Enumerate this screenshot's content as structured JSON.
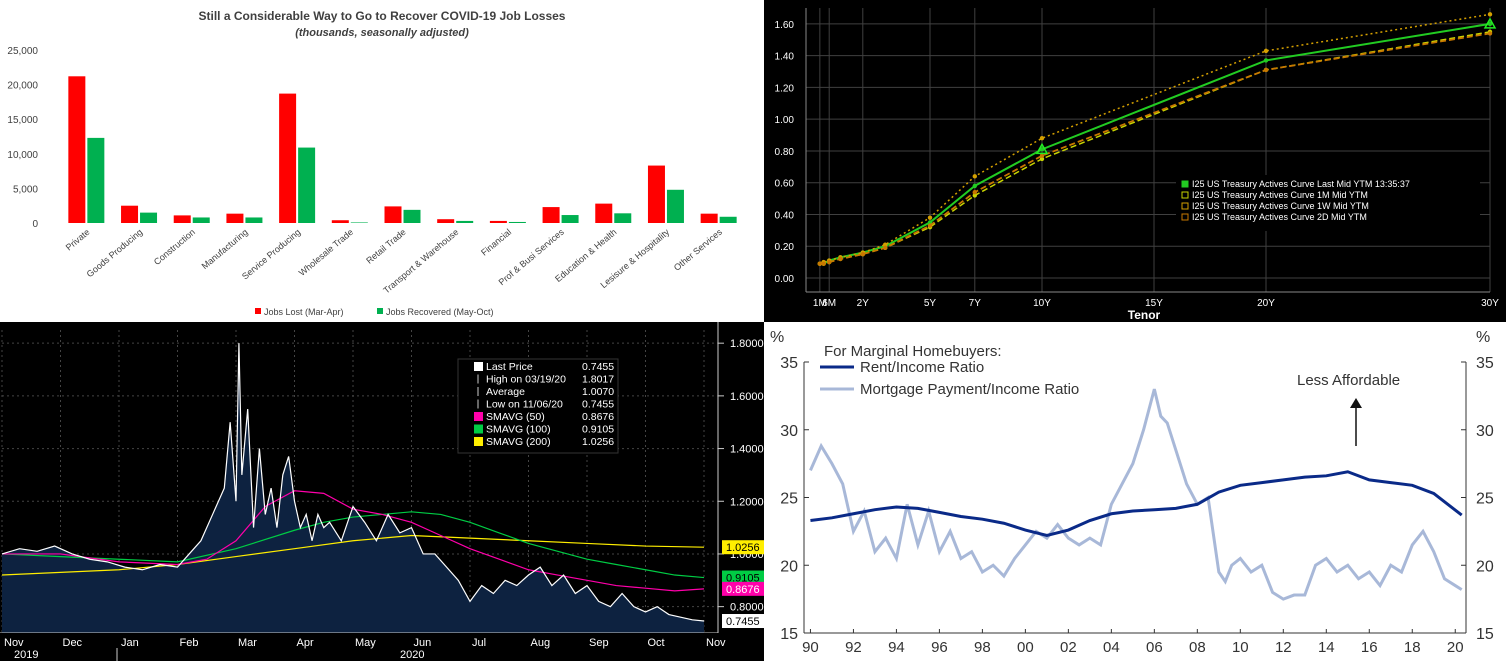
{
  "chart_data": [
    {
      "type": "bar",
      "title": "Still a Considerable  Way to Go to Recover COVID-19 Job Losses",
      "subtitle": "(thousands, seasonally adjusted)",
      "categories": [
        "Private",
        "Goods Producing",
        "Construction",
        "Manufacturing",
        "Service Producing",
        "Wholesale Trade",
        "Retail Trade",
        "Transport & Warehouse",
        "Financial",
        "Prof & Busi Services",
        "Education & Health",
        "Lesisure & Hospitality",
        "Other Services"
      ],
      "series": [
        {
          "name": "Jobs Lost (Mar-Apr)",
          "color": "#ff0000",
          "values": [
            21200,
            2500,
            1100,
            1350,
            18700,
            400,
            2400,
            550,
            300,
            2300,
            2800,
            8300,
            1350
          ]
        },
        {
          "name": "Jobs Recovered (May-Oct)",
          "color": "#00b050",
          "values": [
            12300,
            1500,
            800,
            800,
            10900,
            80,
            1900,
            300,
            150,
            1150,
            1400,
            4800,
            900
          ]
        }
      ],
      "ylim": [
        0,
        25000
      ],
      "yticks": [
        "0",
        "5,000",
        "10,000",
        "15,000",
        "20,000",
        "25,000"
      ],
      "legend": "bottom",
      "grid": false
    },
    {
      "type": "line",
      "xlabel": "Tenor",
      "x_tenors": [
        0.083,
        0.25,
        0.5,
        1,
        2,
        3,
        5,
        7,
        10,
        20,
        30
      ],
      "xticks": [
        {
          "label": "1M",
          "v": 0.083
        },
        {
          "label": "6M",
          "v": 0.5
        },
        {
          "label": "2Y",
          "v": 2
        },
        {
          "label": "5Y",
          "v": 5
        },
        {
          "label": "7Y",
          "v": 7
        },
        {
          "label": "10Y",
          "v": 10
        },
        {
          "label": "15Y",
          "v": 15
        },
        {
          "label": "20Y",
          "v": 20
        },
        {
          "label": "30Y",
          "v": 30
        }
      ],
      "ylim": [
        0,
        1.7
      ],
      "yticks": [
        "0.00",
        "0.20",
        "0.40",
        "0.60",
        "0.80",
        "1.00",
        "1.20",
        "1.40",
        "1.60"
      ],
      "legend": "right",
      "grid": true,
      "series": [
        {
          "name": "I25 US Treasury Actives Curve Last Mid YTM 13:35:37",
          "color": "#22cc22",
          "values": [
            0.09,
            0.09,
            0.11,
            0.13,
            0.16,
            0.2,
            0.35,
            0.58,
            0.81,
            1.37,
            1.6
          ]
        },
        {
          "name": "I25 US Treasury Actives Curve 1M Mid YTM",
          "color": "#c8d400",
          "values": [
            0.09,
            0.09,
            0.1,
            0.12,
            0.15,
            0.19,
            0.32,
            0.52,
            0.75,
            1.31,
            1.55
          ]
        },
        {
          "name": "I25 US Treasury Actives Curve 1W Mid YTM",
          "color": "#d4a000",
          "values": [
            0.09,
            0.1,
            0.11,
            0.13,
            0.16,
            0.21,
            0.38,
            0.64,
            0.88,
            1.43,
            1.66
          ]
        },
        {
          "name": "I25 US Treasury Actives Curve 2D Mid YTM",
          "color": "#c87800",
          "values": [
            0.09,
            0.09,
            0.1,
            0.12,
            0.15,
            0.19,
            0.33,
            0.54,
            0.77,
            1.31,
            1.54
          ]
        }
      ]
    },
    {
      "type": "area",
      "ylim": [
        0.7,
        1.85
      ],
      "yticks": [
        "1.8000",
        "1.6000",
        "1.4000",
        "1.2000",
        "1.0000",
        "0.8000"
      ],
      "xticks": [
        "Nov",
        "Dec",
        "Jan",
        "Feb",
        "Mar",
        "Apr",
        "May",
        "Jun",
        "Jul",
        "Aug",
        "Sep",
        "Oct",
        "Nov"
      ],
      "years": [
        "2019",
        "2020"
      ],
      "legend": "top-right",
      "legend_rows": [
        {
          "label": "Last Price",
          "value": "0.7455",
          "swatch": "#ffffff"
        },
        {
          "label": "High on 03/19/20",
          "value": "1.8017",
          "swatch": "none"
        },
        {
          "label": "Average",
          "value": "1.0070",
          "swatch": "none"
        },
        {
          "label": "Low on 11/06/20",
          "value": "0.7455",
          "swatch": "none"
        },
        {
          "label": "SMAVG (50)",
          "value": "0.8676",
          "swatch": "#ff00aa"
        },
        {
          "label": "SMAVG (100)",
          "value": "0.9105",
          "swatch": "#00cc44"
        },
        {
          "label": "SMAVG (200)",
          "value": "1.0256",
          "swatch": "#ffee00"
        }
      ],
      "tags": [
        {
          "value": "1.0256",
          "color": "#ffee00",
          "text": "#000000",
          "y": 1.0256
        },
        {
          "value": "0.9105",
          "color": "#00cc44",
          "text": "#000000",
          "y": 0.9105
        },
        {
          "value": "0.8676",
          "color": "#ff00aa",
          "text": "#ffffff",
          "y": 0.8676
        },
        {
          "value": "0.7455",
          "color": "#ffffff",
          "text": "#000000",
          "y": 0.7455
        }
      ],
      "series": [
        {
          "name": "Last Price",
          "color": "#ffffff",
          "x": [
            0,
            0.3,
            0.6,
            0.9,
            1.2,
            1.5,
            1.8,
            2.1,
            2.4,
            2.7,
            3.0,
            3.2,
            3.4,
            3.6,
            3.8,
            3.9,
            4.0,
            4.05,
            4.1,
            4.2,
            4.3,
            4.4,
            4.5,
            4.6,
            4.7,
            4.8,
            4.9,
            5.0,
            5.1,
            5.2,
            5.3,
            5.4,
            5.5,
            5.6,
            5.8,
            6.0,
            6.2,
            6.4,
            6.6,
            6.8,
            7.0,
            7.2,
            7.4,
            7.6,
            7.8,
            8.0,
            8.2,
            8.4,
            8.6,
            8.8,
            9.0,
            9.2,
            9.4,
            9.6,
            9.8,
            10.0,
            10.2,
            10.4,
            10.6,
            10.8,
            11.0,
            11.2,
            11.4,
            11.6,
            11.8,
            12.0
          ],
          "values": [
            1.0,
            1.02,
            1.01,
            1.03,
            1.0,
            0.98,
            0.97,
            0.95,
            0.94,
            0.96,
            0.95,
            1.0,
            1.05,
            1.15,
            1.25,
            1.5,
            1.2,
            1.8,
            1.3,
            1.55,
            1.1,
            1.4,
            1.15,
            1.25,
            1.1,
            1.3,
            1.37,
            1.2,
            1.1,
            1.15,
            1.05,
            1.15,
            1.1,
            1.12,
            1.05,
            1.18,
            1.12,
            1.05,
            1.15,
            1.08,
            1.1,
            1.0,
            1.0,
            0.95,
            0.9,
            0.82,
            0.88,
            0.85,
            0.9,
            0.88,
            0.92,
            0.95,
            0.88,
            0.92,
            0.85,
            0.88,
            0.82,
            0.8,
            0.85,
            0.8,
            0.78,
            0.8,
            0.77,
            0.76,
            0.75,
            0.7455
          ]
        },
        {
          "name": "SMAVG (50)",
          "color": "#ff00aa",
          "x": [
            0,
            1,
            2,
            3,
            3.5,
            4,
            4.5,
            5,
            5.5,
            6,
            6.5,
            7,
            7.5,
            8,
            8.5,
            9,
            9.5,
            10,
            10.5,
            11,
            11.5,
            12
          ],
          "values": [
            1.0,
            1.0,
            0.97,
            0.96,
            0.98,
            1.05,
            1.18,
            1.24,
            1.23,
            1.17,
            1.15,
            1.12,
            1.07,
            1.02,
            0.98,
            0.94,
            0.92,
            0.9,
            0.88,
            0.87,
            0.86,
            0.8676
          ]
        },
        {
          "name": "SMAVG (100)",
          "color": "#00cc44",
          "x": [
            0,
            1,
            2,
            3,
            4,
            5,
            5.5,
            6,
            6.5,
            7,
            7.5,
            8,
            8.5,
            9,
            9.5,
            10,
            10.5,
            11,
            11.5,
            12
          ],
          "values": [
            1.0,
            0.99,
            0.98,
            0.97,
            1.02,
            1.09,
            1.12,
            1.14,
            1.15,
            1.16,
            1.15,
            1.12,
            1.08,
            1.04,
            1.01,
            0.98,
            0.96,
            0.94,
            0.92,
            0.9105
          ]
        },
        {
          "name": "SMAVG (200)",
          "color": "#ffee00",
          "x": [
            0,
            1,
            2,
            3,
            4,
            5,
            6,
            7,
            8,
            9,
            10,
            11,
            12
          ],
          "values": [
            0.92,
            0.93,
            0.94,
            0.96,
            0.99,
            1.02,
            1.05,
            1.07,
            1.06,
            1.05,
            1.04,
            1.03,
            1.0256
          ]
        }
      ]
    },
    {
      "type": "line",
      "ylabel_left": "%",
      "ylabel_right": "%",
      "ylim": [
        15,
        35
      ],
      "yticks": [
        "15",
        "20",
        "25",
        "30",
        "35"
      ],
      "xticks": [
        "90",
        "92",
        "94",
        "96",
        "98",
        "00",
        "02",
        "04",
        "06",
        "08",
        "10",
        "12",
        "14",
        "16",
        "18",
        "20"
      ],
      "legend_title": "For Marginal Homebuyers:",
      "annotation": "Less Affordable",
      "legend": "top-left",
      "series": [
        {
          "name": "Rent/Income Ratio",
          "color": "#0a2a88",
          "x": [
            1990,
            1991,
            1992,
            1993,
            1994,
            1995,
            1996,
            1997,
            1998,
            1999,
            2000,
            2001,
            2002,
            2003,
            2004,
            2005,
            2006,
            2007,
            2008,
            2009,
            2010,
            2011,
            2012,
            2013,
            2014,
            2015,
            2016,
            2017,
            2018,
            2019,
            2020.3
          ],
          "values": [
            23.3,
            23.5,
            23.8,
            24.1,
            24.3,
            24.2,
            23.9,
            23.6,
            23.4,
            23.1,
            22.6,
            22.2,
            22.6,
            23.3,
            23.8,
            24.0,
            24.1,
            24.2,
            24.5,
            25.4,
            25.9,
            26.1,
            26.3,
            26.5,
            26.6,
            26.9,
            26.3,
            26.1,
            25.9,
            25.3,
            23.7
          ]
        },
        {
          "name": "Mortgage Payment/Income Ratio",
          "color": "#a8b8d8",
          "x": [
            1990,
            1990.5,
            1991,
            1991.5,
            1992,
            1992.5,
            1993,
            1993.5,
            1994,
            1994.5,
            1995,
            1995.5,
            1996,
            1996.5,
            1997,
            1997.5,
            1998,
            1998.5,
            1999,
            1999.5,
            2000,
            2000.5,
            2001,
            2001.5,
            2002,
            2002.5,
            2003,
            2003.5,
            2004,
            2004.5,
            2005,
            2005.5,
            2006,
            2006.3,
            2006.6,
            2007,
            2007.5,
            2008,
            2008.5,
            2009,
            2009.3,
            2009.6,
            2010,
            2010.5,
            2011,
            2011.5,
            2012,
            2012.5,
            2013,
            2013.5,
            2014,
            2014.5,
            2015,
            2015.5,
            2016,
            2016.5,
            2017,
            2017.5,
            2018,
            2018.5,
            2019,
            2019.5,
            2020,
            2020.3
          ],
          "values": [
            27.0,
            28.8,
            27.5,
            26.0,
            22.5,
            24.0,
            21.0,
            22.0,
            20.5,
            24.5,
            21.5,
            24.0,
            21.0,
            22.5,
            20.5,
            21.0,
            19.5,
            20.0,
            19.2,
            20.5,
            21.5,
            22.5,
            22.0,
            23.0,
            22.0,
            21.5,
            22.0,
            21.5,
            24.5,
            26.0,
            27.5,
            30.0,
            33.0,
            31.0,
            30.5,
            28.5,
            26.0,
            24.5,
            25.0,
            19.5,
            18.8,
            20.0,
            20.5,
            19.5,
            20.0,
            18.0,
            17.5,
            17.8,
            17.8,
            20.0,
            20.5,
            19.5,
            20.0,
            19.0,
            19.5,
            18.5,
            20.0,
            19.5,
            21.5,
            22.5,
            21.0,
            19.0,
            18.5,
            18.2
          ]
        }
      ]
    }
  ]
}
